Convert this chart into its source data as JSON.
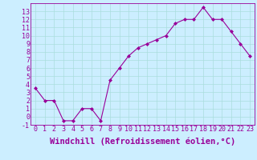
{
  "x": [
    0,
    1,
    2,
    3,
    4,
    5,
    6,
    7,
    8,
    9,
    10,
    11,
    12,
    13,
    14,
    15,
    16,
    17,
    18,
    19,
    20,
    21,
    22,
    23
  ],
  "y": [
    3.5,
    2.0,
    2.0,
    -0.5,
    -0.5,
    1.0,
    1.0,
    -0.5,
    4.5,
    6.0,
    7.5,
    8.5,
    9.0,
    9.5,
    10.0,
    11.5,
    12.0,
    12.0,
    13.5,
    12.0,
    12.0,
    10.5,
    9.0,
    7.5
  ],
  "xlabel": "Windchill (Refroidissement éolien,°C)",
  "ylim": [
    -1,
    14
  ],
  "xlim": [
    -0.5,
    23.5
  ],
  "yticks": [
    -1,
    0,
    1,
    2,
    3,
    4,
    5,
    6,
    7,
    8,
    9,
    10,
    11,
    12,
    13
  ],
  "xticks": [
    0,
    1,
    2,
    3,
    4,
    5,
    6,
    7,
    8,
    9,
    10,
    11,
    12,
    13,
    14,
    15,
    16,
    17,
    18,
    19,
    20,
    21,
    22,
    23
  ],
  "line_color": "#990099",
  "marker": "D",
  "marker_size": 2,
  "bg_color": "#cceeff",
  "grid_color": "#aadddd",
  "tick_label_fontsize": 6,
  "xlabel_fontsize": 7.5
}
